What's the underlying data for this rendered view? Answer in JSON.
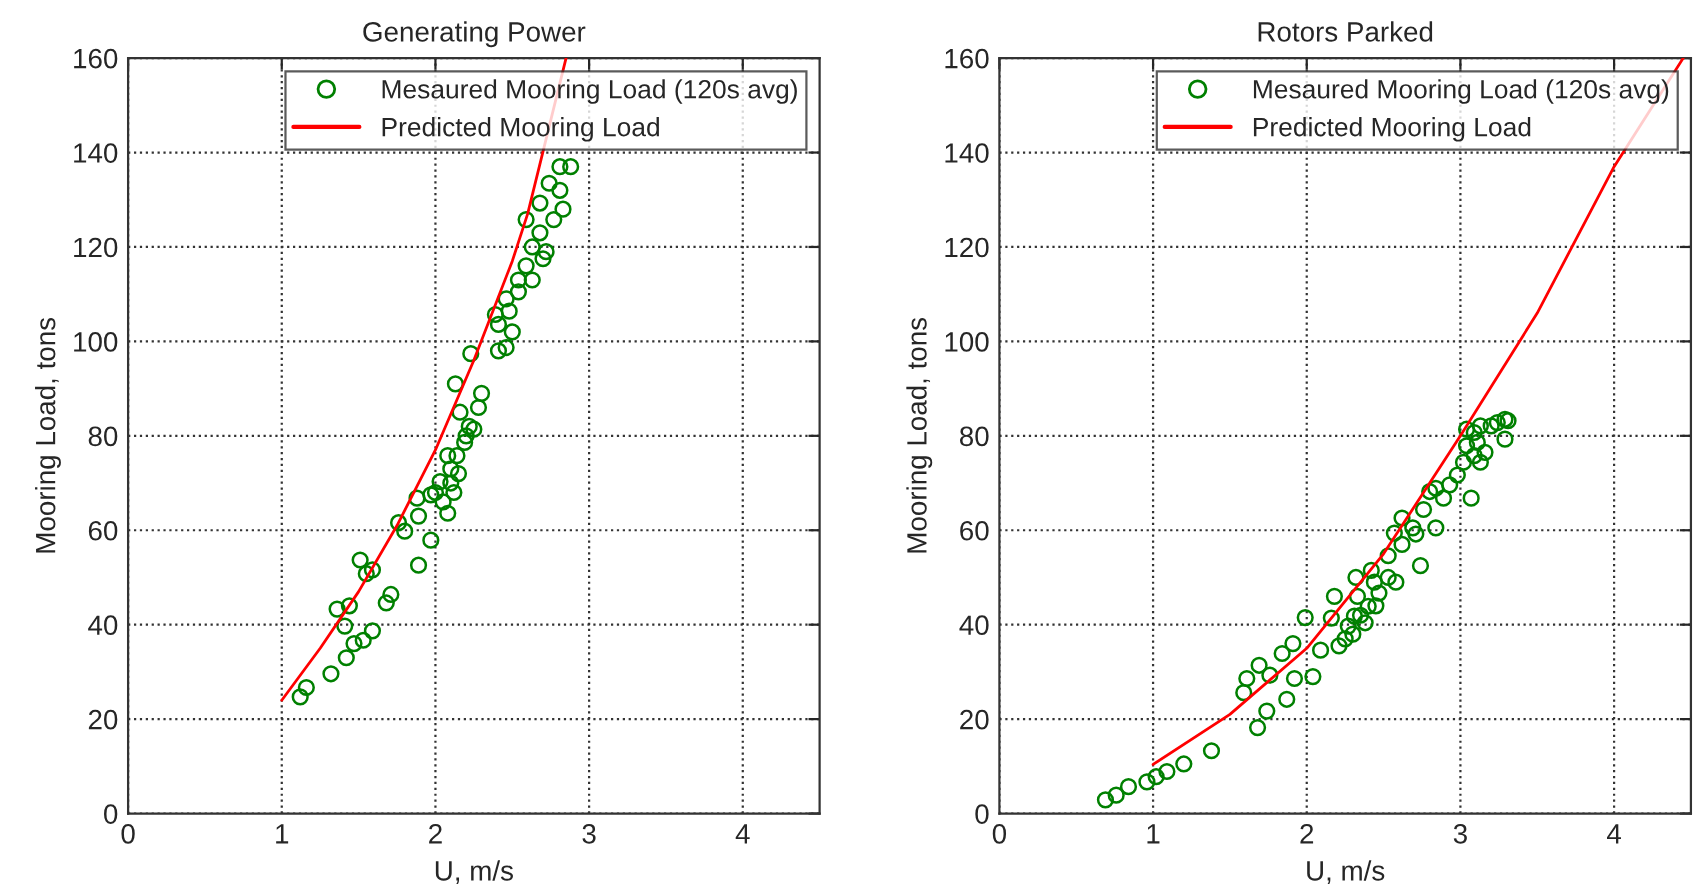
{
  "chart_data": [
    {
      "type": "scatter",
      "title": "Generating Power",
      "xlabel": "U, m/s",
      "ylabel": "Mooring Load, tons",
      "xlim": [
        0,
        4.5
      ],
      "xticks": [
        0,
        1,
        2,
        3,
        4
      ],
      "ylim": [
        0,
        160
      ],
      "yticks": [
        0,
        20,
        40,
        60,
        80,
        100,
        120,
        140,
        160
      ],
      "grid": true,
      "legend": "top right",
      "series": [
        {
          "name": "Mesaured Mooring Load (120s avg)",
          "marker": "circle",
          "color": "#008000",
          "x": [
            1.12,
            1.16,
            1.32,
            1.42,
            1.47,
            1.53,
            1.59,
            1.41,
            1.36,
            1.44,
            1.68,
            1.71,
            1.51,
            1.55,
            1.59,
            1.89,
            1.97,
            1.76,
            1.8,
            1.89,
            2.08,
            1.88,
            1.97,
            2.03,
            2.1,
            2.14,
            2.19,
            2.25,
            2.3,
            2.13,
            2.28,
            2.08,
            2.0,
            2.05,
            2.1,
            2.15,
            2.12,
            2.2,
            2.22,
            2.16,
            2.23,
            2.41,
            2.46,
            2.41,
            2.48,
            2.39,
            2.54,
            2.59,
            2.63,
            2.7,
            2.59,
            2.68,
            2.77,
            2.83,
            2.68,
            2.74,
            2.81,
            2.81,
            2.88,
            2.54,
            2.46,
            2.5,
            2.63,
            2.72
          ],
          "values": [
            24.7,
            26.7,
            29.6,
            33,
            36,
            36.7,
            38.7,
            39.7,
            43.3,
            44,
            44.6,
            46.4,
            53.7,
            50.8,
            51.6,
            52.6,
            57.9,
            61.6,
            59.8,
            63,
            63.6,
            66.8,
            67.5,
            70.3,
            73,
            75.8,
            78.6,
            81.4,
            89,
            91,
            86,
            75.8,
            68,
            66,
            70,
            72,
            68,
            80,
            82,
            85,
            97.4,
            98,
            98.7,
            103.6,
            106.4,
            105.7,
            110.5,
            116,
            120,
            117.5,
            125.8,
            123,
            125.8,
            128,
            129.3,
            133.5,
            132,
            137,
            137,
            113,
            109,
            102,
            113,
            119
          ]
        },
        {
          "name": "Predicted Mooring Load",
          "type": "line",
          "marker": "none",
          "line_style": "solid",
          "color": "#ff0000",
          "x": [
            1,
            1.25,
            1.5,
            1.75,
            2,
            2.25,
            2.5,
            2.6,
            2.85
          ],
          "values": [
            24,
            35,
            47,
            61,
            77,
            96,
            117,
            127,
            160
          ]
        }
      ]
    },
    {
      "type": "scatter",
      "title": "Rotors Parked",
      "xlabel": "U, m/s",
      "ylabel": "Mooring Load, tons",
      "xlim": [
        0,
        4.5
      ],
      "xticks": [
        0,
        1,
        2,
        3,
        4
      ],
      "ylim": [
        0,
        160
      ],
      "yticks": [
        0,
        20,
        40,
        60,
        80,
        100,
        120,
        140,
        160
      ],
      "grid": true,
      "legend": "top right",
      "series": [
        {
          "name": "Mesaured Mooring Load (120s avg)",
          "marker": "circle",
          "color": "#008000",
          "x": [
            0.69,
            0.76,
            0.84,
            0.96,
            1.02,
            1.09,
            1.2,
            1.38,
            1.68,
            1.74,
            1.87,
            1.59,
            1.61,
            1.69,
            1.76,
            1.92,
            2.04,
            1.84,
            1.91,
            2.09,
            1.99,
            2.16,
            2.21,
            2.27,
            2.31,
            2.38,
            2.4,
            2.33,
            2.18,
            2.32,
            2.44,
            2.47,
            2.58,
            2.53,
            2.42,
            2.74,
            2.53,
            2.62,
            2.57,
            2.62,
            2.69,
            2.84,
            2.76,
            2.8,
            2.84,
            2.89,
            2.93,
            2.98,
            3.07,
            3.02,
            3.09,
            3.04,
            3.11,
            3.09,
            3.13,
            3.2,
            3.24,
            3.29,
            3.31,
            3.13,
            3.16,
            3.29,
            3.04,
            2.71,
            2.3,
            2.25,
            2.35,
            2.45
          ],
          "values": [
            2.9,
            3.9,
            5.7,
            6.7,
            7.8,
            8.9,
            10.5,
            13.3,
            18.2,
            21.7,
            24.2,
            25.6,
            28.6,
            31.4,
            29.3,
            28.6,
            29,
            33.9,
            36,
            34.6,
            41.5,
            41.4,
            35.5,
            39.7,
            41.8,
            40.4,
            43.9,
            46,
            46,
            50,
            49,
            46.7,
            49,
            50,
            51.5,
            52.5,
            54.6,
            57,
            59.4,
            62.6,
            60.5,
            60.5,
            64.4,
            68.2,
            68.9,
            66.8,
            69.6,
            71.7,
            66.8,
            74.4,
            75.8,
            77.9,
            78.6,
            80.7,
            82.1,
            82.1,
            82.8,
            83.5,
            83.2,
            74.4,
            76.5,
            79.3,
            81.4,
            59.2,
            38,
            37,
            42,
            44
          ]
        },
        {
          "name": "Predicted Mooring Load",
          "type": "line",
          "marker": "none",
          "line_style": "solid",
          "color": "#ff0000",
          "x": [
            1,
            1.5,
            2,
            2.5,
            3,
            3.5,
            4,
            4.45
          ],
          "values": [
            10.4,
            21,
            35,
            55,
            80,
            106,
            137,
            160
          ]
        }
      ]
    }
  ]
}
